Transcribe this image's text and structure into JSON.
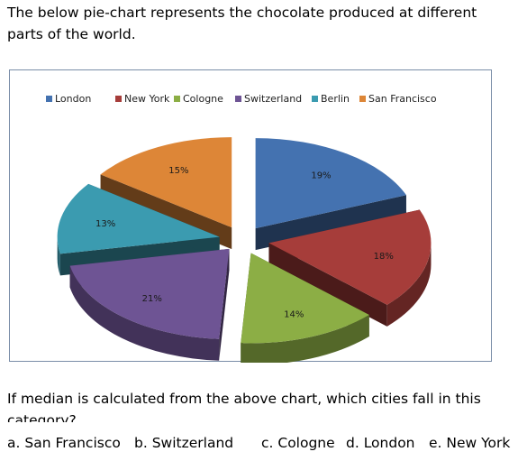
{
  "intro_text": "The below pie-chart represents the chocolate produced at different parts of the world.",
  "question_text": "If median is calculated from the above chart, which cities fall in this category?",
  "options": [
    {
      "label": "a. San Francisco"
    },
    {
      "label": "b. Switzerland"
    },
    {
      "label": "c. Cologne"
    },
    {
      "label": "d. London"
    },
    {
      "label": "e. New York"
    }
  ],
  "chart_data": {
    "type": "pie",
    "style": "3d-exploded",
    "legend_position": "top",
    "categories": [
      "London",
      "New York",
      "Cologne",
      "Switzerland",
      "Berlin",
      "San Francisco"
    ],
    "values": [
      19,
      18,
      14,
      21,
      13,
      15
    ],
    "labels": [
      "19%",
      "18%",
      "14%",
      "21%",
      "13%",
      "15%"
    ],
    "colors": [
      "#4472b0",
      "#a63d3a",
      "#8cae45",
      "#6e5494",
      "#3b9bb0",
      "#dd8637"
    ]
  }
}
